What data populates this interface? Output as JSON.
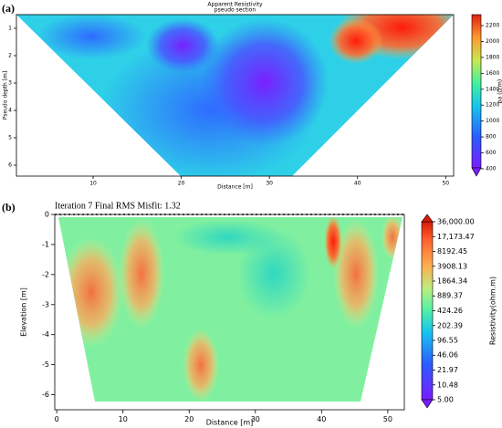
{
  "chart_data": [
    {
      "type": "contour",
      "panel_label": "(a)",
      "title": "Apparent Resistivity",
      "subtitle": "pseudo section",
      "x_label": "Distance [m]",
      "y_label": "Pseudo depth [m]",
      "xlim": [
        1.3,
        50.9
      ],
      "xticks": [
        10,
        20,
        30,
        40,
        50
      ],
      "ylim": [
        6.4,
        0.5
      ],
      "yticks": [
        1,
        2,
        3,
        4,
        5,
        6
      ],
      "colorbar": {
        "label": "ρa (Ω.m)",
        "lim": [
          411,
          2338
        ],
        "log": false,
        "ticks": [
          400,
          600,
          800,
          1000,
          1200,
          1400,
          1600,
          1800,
          2000,
          2200
        ]
      }
    },
    {
      "type": "contour",
      "panel_label": "(b)",
      "title": "Iteration 7    Final RMS Misfit: 1.32",
      "x_label": "Distance [m]",
      "y_label": "Elevation [m]",
      "xlim": [
        -0.3,
        52.5
      ],
      "xticks": [
        0,
        10,
        20,
        30,
        40,
        50
      ],
      "ylim": [
        -6.5,
        0
      ],
      "yticks": [
        -6,
        -5,
        -4,
        -3,
        -2,
        -1,
        0
      ],
      "colorbar": {
        "label": "Resistivity(ohm.m)",
        "lim": [
          5,
          36000
        ],
        "log": true,
        "ticks": [
          {
            "value": 5,
            "label": "5.00"
          },
          {
            "value": 10.48,
            "label": "10.48"
          },
          {
            "value": 21.97,
            "label": "21.97"
          },
          {
            "value": 46.06,
            "label": "46.06"
          },
          {
            "value": 96.55,
            "label": "96.55"
          },
          {
            "value": 202.39,
            "label": "202.39"
          },
          {
            "value": 424.26,
            "label": "424.26"
          },
          {
            "value": 889.37,
            "label": "889.37"
          },
          {
            "value": 1864.34,
            "label": "1864.34"
          },
          {
            "value": 3908.13,
            "label": "3908.13"
          },
          {
            "value": 8192.45,
            "label": "8192.45"
          },
          {
            "value": 17173.47,
            "label": "17,173.47"
          },
          {
            "value": 36000,
            "label": "36,000.00"
          }
        ]
      }
    }
  ]
}
